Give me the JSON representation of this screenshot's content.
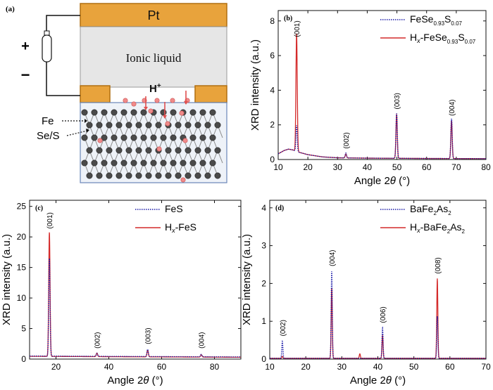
{
  "schematic": {
    "panel_label": "(a)",
    "pt_label": "Pt",
    "ionic_label": "Ionic liquid",
    "h_label": "H",
    "h_sup": "+",
    "plus_sign": "+",
    "minus_sign": "−",
    "fe_label": "Fe",
    "se_s_label": "Se/S",
    "colors": {
      "pt": "#e8a33c",
      "pt_border": "#b06f10",
      "ionic": "#e6e6e6",
      "crystal_bg": "#eef2f8",
      "crystal_border": "#6a86b8",
      "atom": "#4a4a4a",
      "proton": "#f08a8a",
      "arrow": "#e05050"
    }
  },
  "colors": {
    "blue": "#1a1aa8",
    "red": "#d42a2a"
  },
  "chart_data": [
    {
      "id": "b",
      "panel_label": "(b)",
      "type": "line",
      "xlabel_prefix": "Angle 2",
      "xlabel_theta": "θ",
      "xlabel_suffix": " (°)",
      "ylabel": "XRD intensity (a.u.)",
      "xlim": [
        10,
        80
      ],
      "ylim": [
        0,
        8.6
      ],
      "xticks": [
        10,
        20,
        30,
        40,
        50,
        60,
        70,
        80
      ],
      "yticks": [
        0,
        2,
        4,
        6,
        8
      ],
      "legend": [
        {
          "name": "FeSe",
          "sub": "0.93",
          "mid": "S",
          "sub2": "0.07",
          "style": "dotted",
          "color": "blue"
        },
        {
          "name": "H",
          "italic_sub": "x",
          "tail": "-FeSe",
          "sub": "0.93",
          "mid": "S",
          "sub2": "0.07",
          "style": "solid",
          "color": "red"
        }
      ],
      "annotations": [
        {
          "text": "(001)",
          "x": 16.2,
          "y": 6.95
        },
        {
          "text": "(002)",
          "x": 32.8,
          "y": 0.5
        },
        {
          "text": "(003)",
          "x": 49.9,
          "y": 2.78
        },
        {
          "text": "(004)",
          "x": 68.4,
          "y": 2.4
        }
      ],
      "series": [
        {
          "name": "FeSe0.93S0.07",
          "color": "blue",
          "style": "dotted",
          "baseline": [
            [
              10,
              0.33
            ],
            [
              12,
              0.52
            ],
            [
              13.5,
              0.6
            ],
            [
              15,
              0.55
            ],
            [
              17,
              0.42
            ],
            [
              20,
              0.28
            ],
            [
              25,
              0.15
            ],
            [
              30,
              0.1
            ],
            [
              40,
              0.08
            ],
            [
              60,
              0.06
            ],
            [
              80,
              0.05
            ]
          ],
          "peaks": [
            {
              "x": 16.2,
              "h": 1.5,
              "w": 0.22
            },
            {
              "x": 32.8,
              "h": 0.28,
              "w": 0.22
            },
            {
              "x": 49.9,
              "h": 2.6,
              "w": 0.22
            },
            {
              "x": 68.4,
              "h": 2.3,
              "w": 0.22
            }
          ]
        },
        {
          "name": "Hx-FeSe0.93S0.07",
          "color": "red",
          "style": "solid",
          "baseline": [
            [
              10,
              0.33
            ],
            [
              12,
              0.52
            ],
            [
              13.5,
              0.6
            ],
            [
              15,
              0.55
            ],
            [
              17,
              0.42
            ],
            [
              20,
              0.28
            ],
            [
              25,
              0.15
            ],
            [
              30,
              0.1
            ],
            [
              40,
              0.08
            ],
            [
              60,
              0.06
            ],
            [
              80,
              0.05
            ]
          ],
          "peaks": [
            {
              "x": 16.2,
              "h": 6.8,
              "w": 0.22
            },
            {
              "x": 32.8,
              "h": 0.22,
              "w": 0.22
            },
            {
              "x": 49.9,
              "h": 2.55,
              "w": 0.22
            },
            {
              "x": 68.4,
              "h": 2.2,
              "w": 0.22
            }
          ]
        }
      ]
    },
    {
      "id": "c",
      "panel_label": "(c)",
      "type": "line",
      "xlabel_prefix": "Angle 2",
      "xlabel_theta": "θ",
      "xlabel_suffix": " (°)",
      "ylabel": "XRD intensity (a.u.)",
      "xlim": [
        10,
        90
      ],
      "ylim": [
        0,
        26
      ],
      "xticks": [
        20,
        40,
        60,
        80
      ],
      "yticks": [
        0,
        5,
        10,
        15,
        20,
        25
      ],
      "legend": [
        {
          "name": "FeS",
          "style": "dotted",
          "color": "blue"
        },
        {
          "name": "H",
          "italic_sub": "x",
          "tail": "-FeS",
          "style": "solid",
          "color": "red"
        }
      ],
      "annotations": [
        {
          "text": "(001)",
          "x": 17.5,
          "y": 21.0
        },
        {
          "text": "(002)",
          "x": 35.5,
          "y": 1.4
        },
        {
          "text": "(003)",
          "x": 54.7,
          "y": 2.1
        },
        {
          "text": "(004)",
          "x": 75.0,
          "y": 1.4
        }
      ],
      "series": [
        {
          "name": "FeS",
          "color": "blue",
          "style": "dotted",
          "baseline": [
            [
              10,
              0.5
            ],
            [
              90,
              0.35
            ]
          ],
          "peaks": [
            {
              "x": 17.5,
              "h": 16,
              "w": 0.25
            },
            {
              "x": 35.5,
              "h": 0.5,
              "w": 0.25
            },
            {
              "x": 54.7,
              "h": 1.2,
              "w": 0.25
            },
            {
              "x": 75.0,
              "h": 0.4,
              "w": 0.25
            }
          ]
        },
        {
          "name": "Hx-FeS",
          "color": "red",
          "style": "solid",
          "baseline": [
            [
              10,
              0.45
            ],
            [
              90,
              0.3
            ]
          ],
          "peaks": [
            {
              "x": 17.5,
              "h": 20.3,
              "w": 0.25
            },
            {
              "x": 35.5,
              "h": 0.6,
              "w": 0.25
            },
            {
              "x": 54.7,
              "h": 1.1,
              "w": 0.25
            },
            {
              "x": 75.0,
              "h": 0.4,
              "w": 0.25
            }
          ]
        }
      ]
    },
    {
      "id": "d",
      "panel_label": "(d)",
      "type": "line",
      "xlabel_prefix": "Angle 2",
      "xlabel_theta": "θ",
      "xlabel_suffix": " (°)",
      "ylabel": "XRD intensity (a.u.)",
      "xlim": [
        10,
        70
      ],
      "ylim": [
        0,
        4.2
      ],
      "xticks": [
        10,
        20,
        30,
        40,
        50,
        60,
        70
      ],
      "yticks": [
        0,
        1,
        2,
        3,
        4
      ],
      "legend": [
        {
          "name": "BaFe",
          "sub": "2",
          "mid": "As",
          "sub2": "2",
          "style": "dotted",
          "color": "blue"
        },
        {
          "name": "H",
          "italic_sub": "x",
          "tail": "-BaFe",
          "sub": "2",
          "mid": "As",
          "sub2": "2",
          "style": "solid",
          "color": "red"
        }
      ],
      "annotations": [
        {
          "text": "(002)",
          "x": 13.5,
          "y": 0.55
        },
        {
          "text": "(004)",
          "x": 27.2,
          "y": 2.4
        },
        {
          "text": "(006)",
          "x": 41.3,
          "y": 0.9
        },
        {
          "text": "(008)",
          "x": 56.5,
          "y": 2.2
        }
      ],
      "series": [
        {
          "name": "BaFe2As2",
          "color": "blue",
          "style": "dotted",
          "baseline": [
            [
              10,
              0.02
            ],
            [
              70,
              0.02
            ]
          ],
          "peaks": [
            {
              "x": 13.5,
              "h": 0.45,
              "w": 0.15
            },
            {
              "x": 27.2,
              "h": 2.3,
              "w": 0.15
            },
            {
              "x": 41.3,
              "h": 0.8,
              "w": 0.15
            },
            {
              "x": 56.5,
              "h": 1.1,
              "w": 0.15
            }
          ]
        },
        {
          "name": "Hx-BaFe2As2",
          "color": "red",
          "style": "solid",
          "baseline": [
            [
              10,
              0.02
            ],
            [
              70,
              0.02
            ]
          ],
          "peaks": [
            {
              "x": 13.5,
              "h": 0.05,
              "w": 0.15
            },
            {
              "x": 27.2,
              "h": 1.85,
              "w": 0.15
            },
            {
              "x": 35.0,
              "h": 0.12,
              "w": 0.15
            },
            {
              "x": 41.3,
              "h": 0.6,
              "w": 0.15
            },
            {
              "x": 56.5,
              "h": 2.1,
              "w": 0.15
            }
          ]
        }
      ]
    }
  ]
}
